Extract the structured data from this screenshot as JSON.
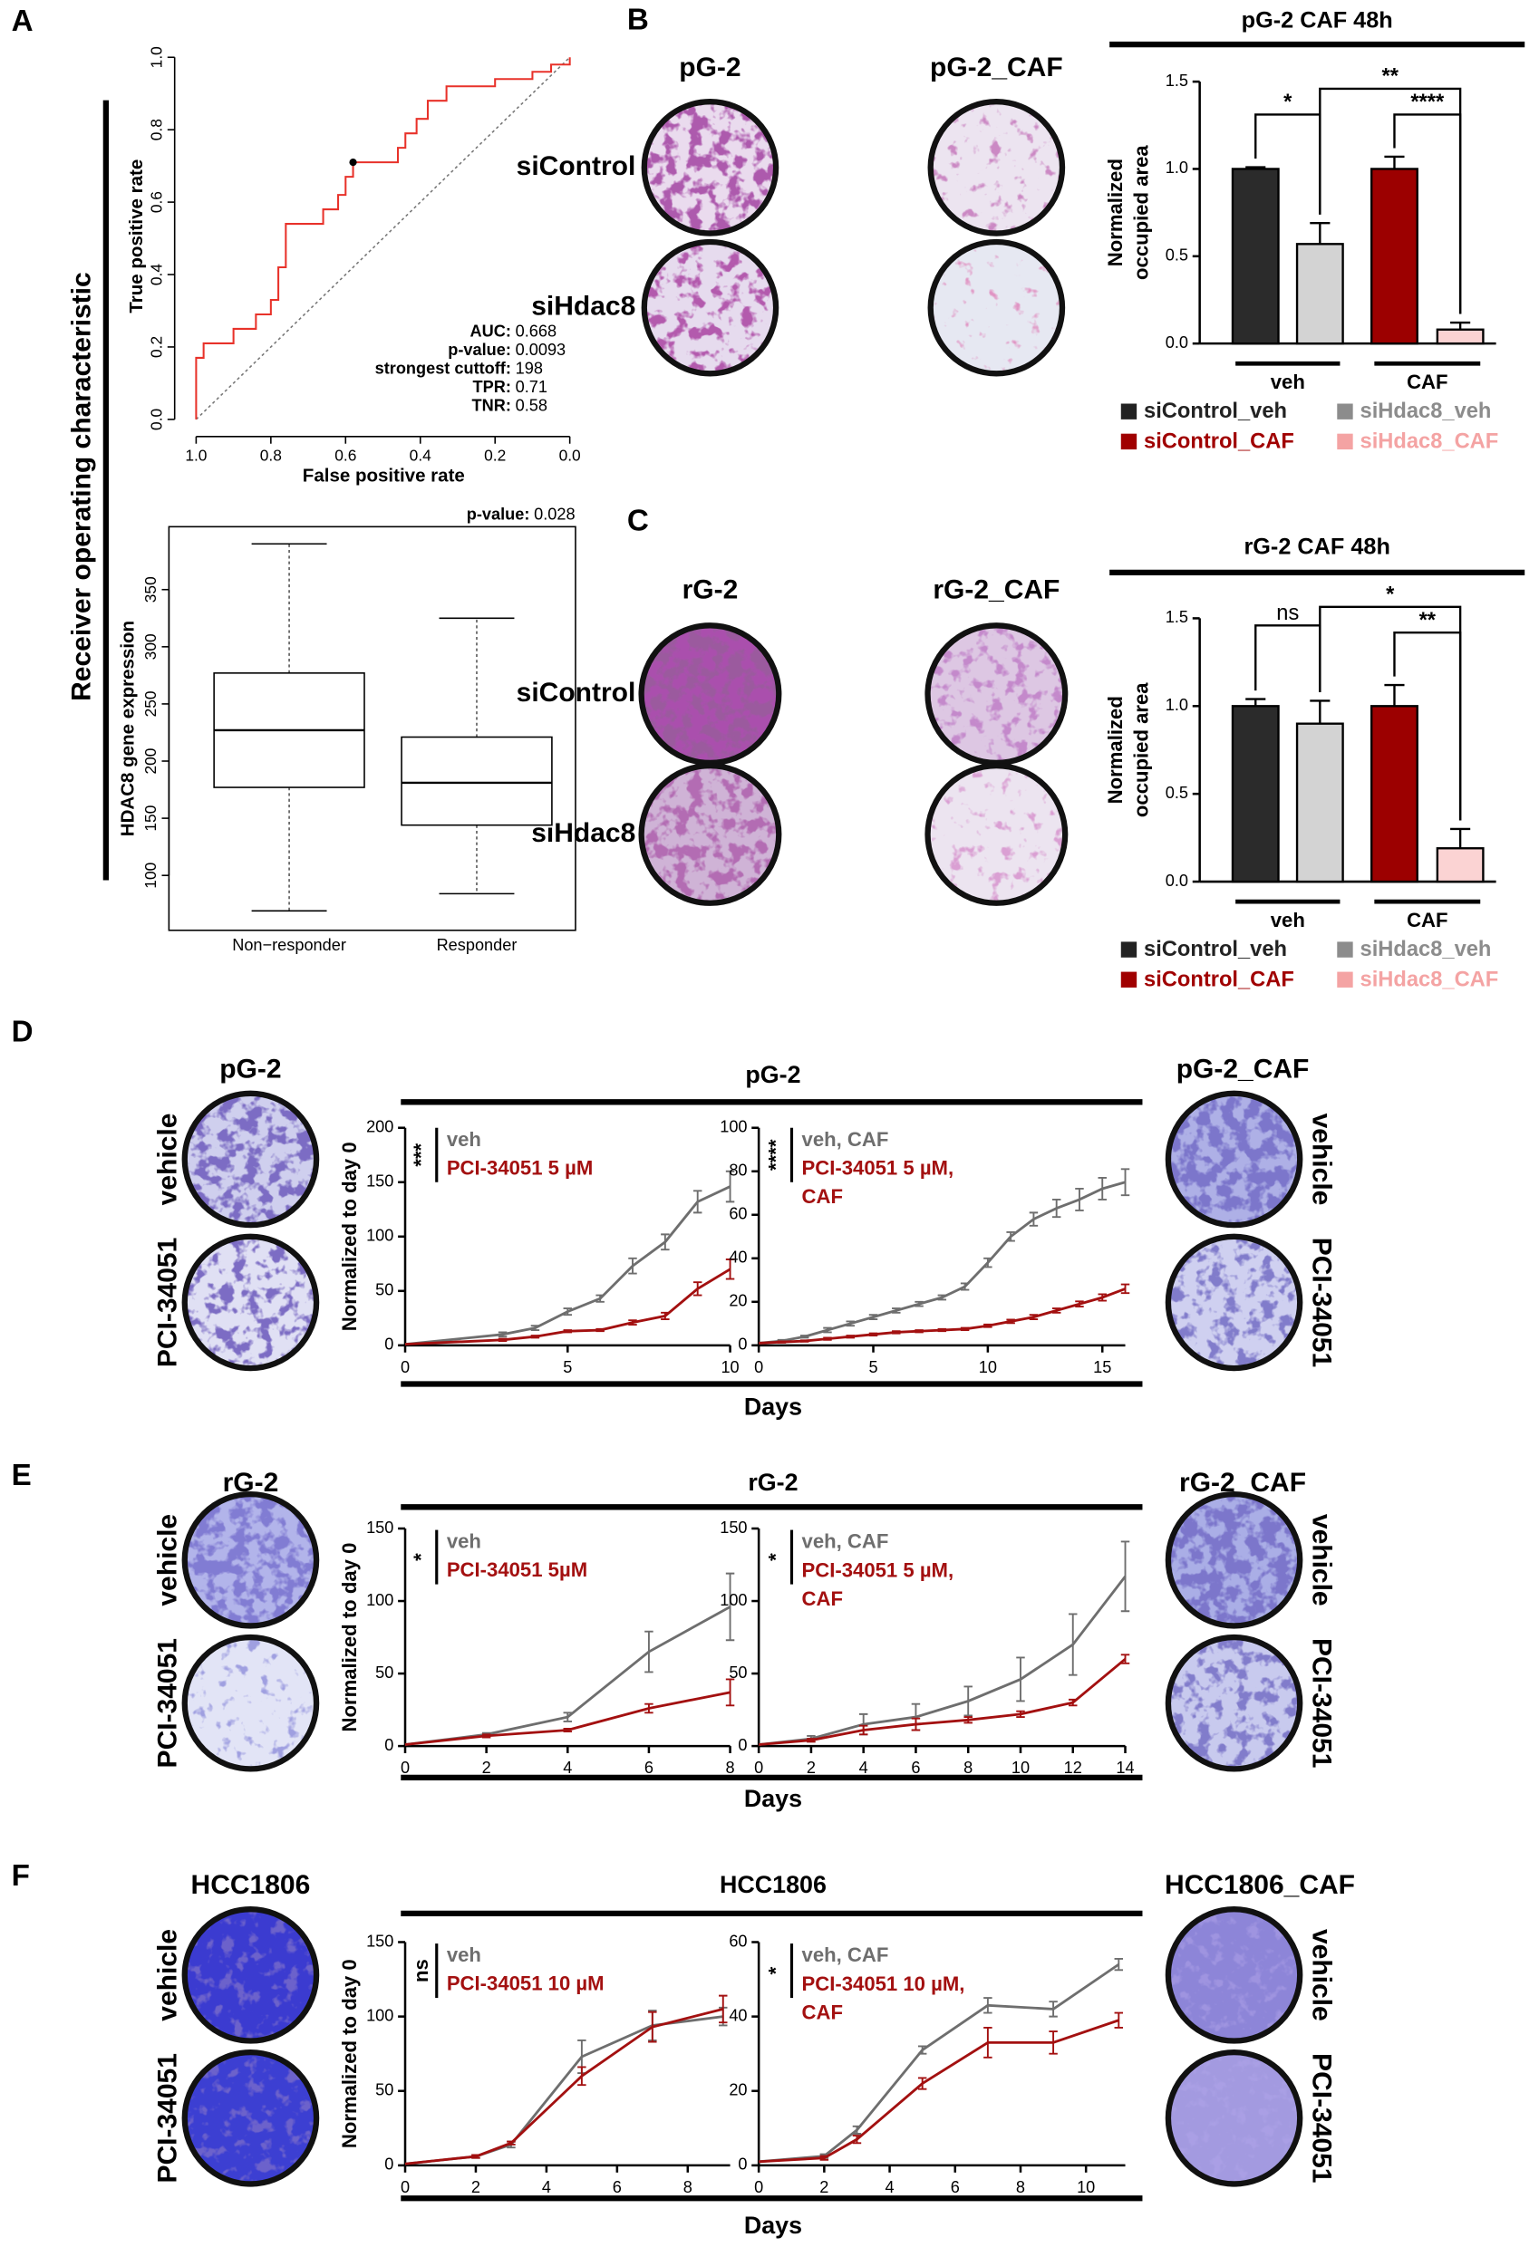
{
  "panels": {
    "A": {
      "letter": "A",
      "side_label": "Receiver operating characteristic"
    },
    "B": {
      "letter": "B",
      "columns": [
        "pG-2",
        "pG-2_CAF"
      ],
      "rows": [
        "siControl",
        "siHdac8"
      ]
    },
    "C": {
      "letter": "C",
      "columns": [
        "rG-2",
        "rG-2_CAF"
      ],
      "rows": [
        "siControl",
        "siHdac8"
      ]
    },
    "D": {
      "letter": "D",
      "title": "pG-2",
      "xlabel": "Days",
      "left": {
        "title": "pG-2",
        "rows": [
          "vehicle",
          "PCI-34051"
        ]
      },
      "right": {
        "title": "pG-2_CAF",
        "rows": [
          "vehicle",
          "PCI-34051"
        ]
      }
    },
    "E": {
      "letter": "E",
      "title": "rG-2",
      "xlabel": "Days",
      "left": {
        "title": "rG-2",
        "rows": [
          "vehicle",
          "PCI-34051"
        ]
      },
      "right": {
        "title": "rG-2_CAF",
        "rows": [
          "vehicle",
          "PCI-34051"
        ]
      }
    },
    "F": {
      "letter": "F",
      "title": "HCC1806",
      "xlabel": "Days",
      "left": {
        "title": "HCC1806",
        "rows": [
          "vehicle",
          "PCI-34051"
        ]
      },
      "right": {
        "title": "HCC1806_CAF",
        "rows": [
          "vehicle",
          "PCI-34051"
        ]
      }
    }
  },
  "chart_data": [
    {
      "type": "line",
      "xlabel": "False positive rate",
      "ylabel": "True positive rate",
      "x": [
        1.0,
        1.0,
        0.98,
        0.98,
        0.9,
        0.9,
        0.84,
        0.84,
        0.8,
        0.8,
        0.78,
        0.78,
        0.76,
        0.76,
        0.66,
        0.66,
        0.62,
        0.62,
        0.6,
        0.6,
        0.58,
        0.58,
        0.46,
        0.46,
        0.44,
        0.44,
        0.41,
        0.41,
        0.38,
        0.38,
        0.33,
        0.33,
        0.2,
        0.2,
        0.1,
        0.1,
        0.05,
        0.05,
        0.0,
        0.0
      ],
      "values": [
        0,
        0.17,
        0.17,
        0.21,
        0.21,
        0.25,
        0.25,
        0.29,
        0.29,
        0.33,
        0.33,
        0.42,
        0.42,
        0.54,
        0.54,
        0.58,
        0.58,
        0.62,
        0.62,
        0.67,
        0.67,
        0.71,
        0.71,
        0.75,
        0.75,
        0.79,
        0.79,
        0.83,
        0.83,
        0.88,
        0.88,
        0.92,
        0.92,
        0.94,
        0.94,
        0.96,
        0.96,
        0.98,
        0.98,
        1.0
      ],
      "color": "#e8322a",
      "xlim": [
        1,
        0
      ],
      "ylim": [
        0,
        1
      ],
      "xticks": [
        {
          "value": 1,
          "label": "1.0"
        },
        0.8,
        0.6,
        0.4,
        0.2,
        {
          "value": 0,
          "label": "0.0"
        }
      ],
      "yticks": [
        {
          "value": 0,
          "label": "0.0"
        },
        0.2,
        0.4,
        0.6,
        0.8,
        {
          "value": 1,
          "label": "1.0"
        }
      ],
      "highlight": {
        "x": 0.58,
        "y": 0.71
      },
      "annotations": [
        {
          "label": "AUC:",
          "value": "0.668"
        },
        {
          "label": "p-value:",
          "value": "0.0093"
        },
        {
          "label": "strongest cuttoff:",
          "value": "198"
        },
        {
          "label": "TPR:",
          "value": "0.71"
        },
        {
          "label": "TNR:",
          "value": "0.58"
        }
      ]
    },
    {
      "type": "box",
      "ylabel": "HDAC8 gene expression",
      "categories": [
        "Non−responder",
        "Responder"
      ],
      "boxes": [
        {
          "min": 69,
          "q1": 177,
          "median": 227,
          "q3": 277,
          "max": 390
        },
        {
          "min": 84,
          "q1": 144,
          "median": 181,
          "q3": 221,
          "max": 325
        }
      ],
      "ylim": [
        52,
        405
      ],
      "yticks": [
        100,
        150,
        200,
        250,
        300,
        350
      ],
      "annotations": [
        {
          "label": "p-value:",
          "value": "0.028"
        }
      ]
    },
    {
      "type": "bar",
      "title": "pG-2 CAF 48h",
      "ylabel": [
        "Normalized",
        "occupied area"
      ],
      "categories": [
        "siControl_veh",
        "siHdac8_veh",
        "siControl_CAF",
        "siHdac8_CAF"
      ],
      "values": [
        1.0,
        0.57,
        1.0,
        0.08
      ],
      "errors": [
        0.01,
        0.12,
        0.07,
        0.04
      ],
      "colors": [
        "#2b2b2b",
        "#d3d3d3",
        "#9c0000",
        "#fbd3d3"
      ],
      "label_colors": [
        "#222222",
        "#8c8c8c",
        "#a00000",
        "#f4a3a3"
      ],
      "groups": [
        "veh",
        "CAF"
      ],
      "significance": [
        "*",
        "**",
        "****"
      ],
      "ylim": [
        0,
        1.5
      ],
      "yticks": [
        {
          "value": 0,
          "label": "0.0"
        },
        0.5,
        {
          "value": 1,
          "label": "1.0"
        },
        1.5
      ]
    },
    {
      "type": "bar",
      "title": "rG-2 CAF 48h",
      "ylabel": [
        "Normalized",
        "occupied area"
      ],
      "categories": [
        "siControl_veh",
        "siHdac8_veh",
        "siControl_CAF",
        "siHdac8_CAF"
      ],
      "values": [
        1.0,
        0.9,
        1.0,
        0.19
      ],
      "errors": [
        0.04,
        0.13,
        0.12,
        0.11
      ],
      "colors": [
        "#2b2b2b",
        "#d3d3d3",
        "#9c0000",
        "#fbd3d3"
      ],
      "label_colors": [
        "#222222",
        "#8c8c8c",
        "#a00000",
        "#f4a3a3"
      ],
      "groups": [
        "veh",
        "CAF"
      ],
      "significance": [
        "ns",
        "*",
        "**"
      ],
      "ylim": [
        0,
        1.5
      ],
      "yticks": [
        {
          "value": 0,
          "label": "0.0"
        },
        0.5,
        {
          "value": 1,
          "label": "1.0"
        },
        1.5
      ]
    },
    {
      "type": "line",
      "ylabel": "Normalized to day 0",
      "stat": "***",
      "x": [
        0,
        3,
        4,
        5,
        6,
        7,
        8,
        9,
        10
      ],
      "series": [
        {
          "name": "veh",
          "color": "#6e6e6e",
          "values": [
            1,
            10,
            16,
            31,
            43,
            73,
            95,
            132,
            146
          ],
          "errors": [
            0,
            2,
            2,
            3,
            3,
            7,
            7,
            10,
            14
          ]
        },
        {
          "name": "PCI-34051 5 µM",
          "color": "#a31010",
          "values": [
            1,
            5,
            8,
            13,
            14,
            21,
            27,
            52,
            70
          ],
          "errors": [
            0,
            1,
            1,
            1,
            1,
            2,
            3,
            6,
            9
          ]
        }
      ],
      "xlim": [
        0,
        10
      ],
      "ylim": [
        0,
        200
      ],
      "xticks": [
        0,
        5,
        10
      ],
      "yticks": [
        0,
        50,
        100,
        150,
        200
      ]
    },
    {
      "type": "line",
      "stat": "****",
      "x": [
        0,
        1,
        2,
        3,
        4,
        5,
        6,
        7,
        8,
        9,
        10,
        11,
        12,
        13,
        14,
        15,
        16
      ],
      "series": [
        {
          "name": "veh, CAF",
          "color": "#6e6e6e",
          "values": [
            1,
            2,
            4,
            7,
            10,
            13,
            16,
            19,
            22,
            27,
            38,
            50,
            58,
            63,
            67,
            72,
            75
          ],
          "errors": [
            0,
            0.5,
            0.5,
            1,
            1,
            1,
            1,
            1,
            1,
            1.5,
            2,
            2,
            3,
            4,
            5,
            5,
            6
          ]
        },
        {
          "name": "PCI-34051 5 µM, CAF",
          "color": "#a31010",
          "values": [
            1,
            1.5,
            2,
            3,
            4,
            5,
            6,
            6.5,
            7,
            7.5,
            9,
            11,
            13,
            16,
            19,
            22,
            26
          ],
          "errors": [
            0,
            0.3,
            0.3,
            0.5,
            0.5,
            0.5,
            0.5,
            0.5,
            0.5,
            0.5,
            0.6,
            0.8,
            1,
            1,
            1.2,
            1.5,
            2
          ]
        }
      ],
      "xlim": [
        0,
        16
      ],
      "ylim": [
        0,
        100
      ],
      "xticks": [
        0,
        5,
        10,
        15
      ],
      "yticks": [
        0,
        20,
        40,
        60,
        80,
        100
      ]
    },
    {
      "type": "line",
      "ylabel": "Normalized to day 0",
      "stat": "*",
      "x": [
        0,
        2,
        4,
        6,
        8
      ],
      "series": [
        {
          "name": "veh",
          "color": "#6e6e6e",
          "values": [
            1,
            8,
            20,
            65,
            96
          ],
          "errors": [
            0,
            1,
            3,
            14,
            23
          ]
        },
        {
          "name": "PCI-34051 5µM",
          "color": "#a31010",
          "values": [
            1,
            7,
            11,
            26,
            37
          ],
          "errors": [
            0,
            1,
            1,
            3,
            9
          ]
        }
      ],
      "xlim": [
        0,
        8
      ],
      "ylim": [
        0,
        150
      ],
      "xticks": [
        0,
        2,
        4,
        6,
        8
      ],
      "yticks": [
        0,
        50,
        100,
        150
      ]
    },
    {
      "type": "line",
      "stat": "*",
      "x": [
        0,
        2,
        4,
        6,
        8,
        10,
        12,
        14
      ],
      "series": [
        {
          "name": "veh, CAF",
          "color": "#6e6e6e",
          "values": [
            1,
            5,
            15,
            20,
            31,
            46,
            70,
            117
          ],
          "errors": [
            0,
            2,
            7,
            9,
            10,
            15,
            21,
            24
          ]
        },
        {
          "name": "PCI-34051 5 µM, CAF",
          "color": "#a31010",
          "values": [
            1,
            4,
            11,
            15,
            18,
            22,
            30,
            60
          ],
          "errors": [
            0,
            1,
            3,
            4,
            2,
            2,
            2,
            3
          ]
        }
      ],
      "xlim": [
        0,
        14
      ],
      "ylim": [
        0,
        150
      ],
      "xticks": [
        0,
        2,
        4,
        6,
        8,
        10,
        12,
        14
      ],
      "yticks": [
        0,
        50,
        100,
        150
      ]
    },
    {
      "type": "line",
      "ylabel": "Normalized to day 0",
      "stat": "ns",
      "x": [
        0,
        2,
        3,
        5,
        7,
        9
      ],
      "series": [
        {
          "name": "veh",
          "color": "#6e6e6e",
          "values": [
            1,
            6,
            14,
            73,
            94,
            100
          ],
          "errors": [
            0,
            1,
            2,
            11,
            10,
            6
          ]
        },
        {
          "name": "PCI-34051 10 µM",
          "color": "#a31010",
          "values": [
            1,
            6,
            15,
            60,
            93,
            105
          ],
          "errors": [
            0,
            1,
            1,
            6,
            10,
            9
          ]
        }
      ],
      "xlim": [
        0,
        9.2
      ],
      "ylim": [
        0,
        150
      ],
      "xticks": [
        0,
        2,
        4,
        6,
        8
      ],
      "yticks": [
        0,
        50,
        100,
        150
      ]
    },
    {
      "type": "line",
      "stat": "*",
      "x": [
        0,
        2,
        3,
        5,
        7,
        9,
        11
      ],
      "series": [
        {
          "name": "veh, CAF",
          "color": "#6e6e6e",
          "values": [
            1,
            2.5,
            9.5,
            31,
            43,
            42,
            54
          ],
          "errors": [
            0,
            0.5,
            1,
            1,
            2,
            2,
            1.5
          ]
        },
        {
          "name": "PCI-34051 10 µM, CAF",
          "color": "#a31010",
          "values": [
            1,
            2,
            7,
            22,
            33,
            33,
            39
          ],
          "errors": [
            0,
            0.5,
            1,
            1.5,
            4,
            3,
            2
          ]
        }
      ],
      "xlim": [
        0,
        11.2
      ],
      "ylim": [
        0,
        60
      ],
      "xticks": [
        0,
        2,
        4,
        6,
        8,
        10
      ],
      "yticks": [
        0,
        20,
        40,
        60
      ]
    }
  ]
}
